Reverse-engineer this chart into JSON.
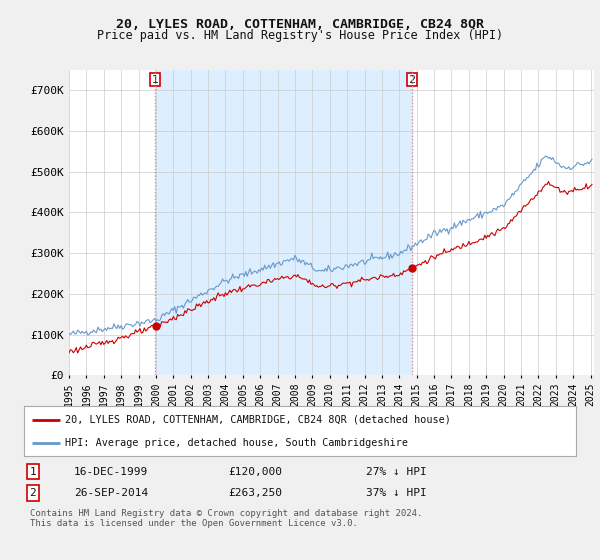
{
  "title": "20, LYLES ROAD, COTTENHAM, CAMBRIDGE, CB24 8QR",
  "subtitle": "Price paid vs. HM Land Registry's House Price Index (HPI)",
  "background_color": "#f0f0f0",
  "plot_bg_color": "#ffffff",
  "shaded_bg_color": "#ddeeff",
  "red_line_color": "#cc0000",
  "blue_line_color": "#6699cc",
  "ylim": [
    0,
    750000
  ],
  "yticks": [
    0,
    100000,
    200000,
    300000,
    400000,
    500000,
    600000,
    700000
  ],
  "ytick_labels": [
    "£0",
    "£100K",
    "£200K",
    "£300K",
    "£400K",
    "£500K",
    "£600K",
    "£700K"
  ],
  "xmin": 1995,
  "xmax": 2025.2,
  "purchase1_year": 1999.96,
  "purchase1_price": 120000,
  "purchase2_year": 2014.73,
  "purchase2_price": 263250,
  "legend_red": "20, LYLES ROAD, COTTENHAM, CAMBRIDGE, CB24 8QR (detached house)",
  "legend_blue": "HPI: Average price, detached house, South Cambridgeshire",
  "note1_num": "1",
  "note1_date": "16-DEC-1999",
  "note1_price": "£120,000",
  "note1_pct": "27% ↓ HPI",
  "note2_num": "2",
  "note2_date": "26-SEP-2014",
  "note2_price": "£263,250",
  "note2_pct": "37% ↓ HPI",
  "footer": "Contains HM Land Registry data © Crown copyright and database right 2024.\nThis data is licensed under the Open Government Licence v3.0."
}
